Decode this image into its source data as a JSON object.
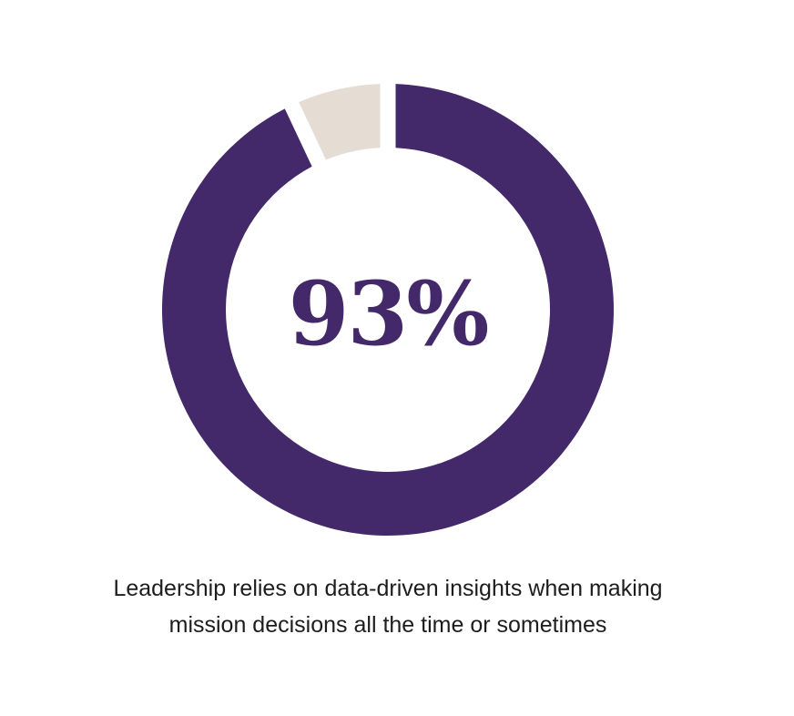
{
  "chart_data": {
    "type": "pie",
    "variant": "donut",
    "center_label": "93%",
    "slices": [
      {
        "value": 93,
        "color": "#43296a"
      },
      {
        "value": 7,
        "color": "#e5ddd4"
      }
    ],
    "caption_lines": [
      "Leadership relies on data-driven insights when making",
      "mission decisions all the time or sometimes"
    ]
  },
  "colors": {
    "primary": "#43296a",
    "secondary": "#e5ddd4",
    "caption_text": "#1d1d1d"
  }
}
